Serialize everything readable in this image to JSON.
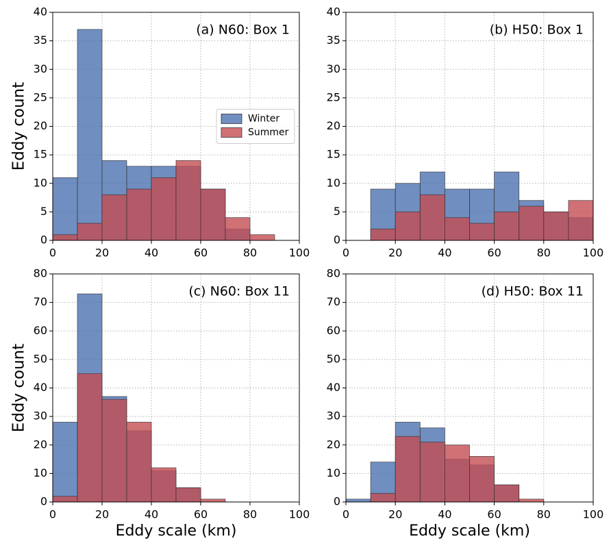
{
  "chart_data": [
    {
      "type": "histogram",
      "title": "(a) N60: Box 1",
      "ylabel": "Eddy count",
      "bins": [
        0,
        10,
        20,
        30,
        40,
        50,
        60,
        70,
        80,
        90,
        100
      ],
      "series": [
        {
          "name": "Winter",
          "color": "#4c72b0",
          "values": [
            11,
            37,
            14,
            13,
            13,
            13,
            9,
            2,
            0,
            0
          ]
        },
        {
          "name": "Summer",
          "color": "#c44e52",
          "values": [
            1,
            3,
            8,
            9,
            11,
            14,
            9,
            4,
            1,
            0
          ]
        }
      ],
      "alpha": 0.8,
      "xlim": [
        0,
        100
      ],
      "ylim": [
        0,
        40
      ],
      "xticks": [
        0,
        20,
        40,
        60,
        80,
        100
      ],
      "yticks": [
        0,
        5,
        10,
        15,
        20,
        25,
        30,
        35,
        40
      ],
      "grid": true,
      "legend": "center right"
    },
    {
      "type": "histogram",
      "title": "(b) H50: Box 1",
      "bins": [
        0,
        10,
        20,
        30,
        40,
        50,
        60,
        70,
        80,
        90,
        100
      ],
      "series": [
        {
          "color": "#4c72b0",
          "values": [
            0,
            9,
            10,
            12,
            9,
            9,
            12,
            7,
            5,
            4
          ]
        },
        {
          "color": "#c44e52",
          "values": [
            0,
            2,
            5,
            8,
            4,
            3,
            5,
            6,
            5,
            7
          ]
        }
      ],
      "alpha": 0.8,
      "xlim": [
        0,
        100
      ],
      "ylim": [
        0,
        40
      ],
      "xticks": [
        0,
        20,
        40,
        60,
        80,
        100
      ],
      "yticks": [
        0,
        5,
        10,
        15,
        20,
        25,
        30,
        35,
        40
      ],
      "grid": true
    },
    {
      "type": "histogram",
      "title": "(c) N60: Box 11",
      "ylabel": "Eddy count",
      "xlabel": "Eddy scale (km)",
      "bins": [
        0,
        10,
        20,
        30,
        40,
        50,
        60,
        70,
        80,
        90,
        100
      ],
      "series": [
        {
          "color": "#4c72b0",
          "values": [
            28,
            73,
            37,
            25,
            11,
            5,
            0,
            0,
            0,
            0
          ]
        },
        {
          "color": "#c44e52",
          "values": [
            2,
            45,
            36,
            28,
            12,
            5,
            1,
            0,
            0,
            0
          ]
        }
      ],
      "alpha": 0.8,
      "xlim": [
        0,
        100
      ],
      "ylim": [
        0,
        80
      ],
      "xticks": [
        0,
        20,
        40,
        60,
        80,
        100
      ],
      "yticks": [
        0,
        10,
        20,
        30,
        40,
        50,
        60,
        70,
        80
      ],
      "grid": true
    },
    {
      "type": "histogram",
      "title": "(d) H50: Box 11",
      "xlabel": "Eddy scale (km)",
      "bins": [
        0,
        10,
        20,
        30,
        40,
        50,
        60,
        70,
        80,
        90,
        100
      ],
      "series": [
        {
          "color": "#4c72b0",
          "values": [
            1,
            14,
            28,
            26,
            15,
            13,
            6,
            0,
            0,
            0
          ]
        },
        {
          "color": "#c44e52",
          "values": [
            0,
            3,
            23,
            21,
            20,
            16,
            6,
            1,
            0,
            0
          ]
        }
      ],
      "alpha": 0.8,
      "xlim": [
        0,
        100
      ],
      "ylim": [
        0,
        80
      ],
      "xticks": [
        0,
        20,
        40,
        60,
        80,
        100
      ],
      "yticks": [
        0,
        10,
        20,
        30,
        40,
        50,
        60,
        70,
        80
      ],
      "grid": true
    }
  ]
}
